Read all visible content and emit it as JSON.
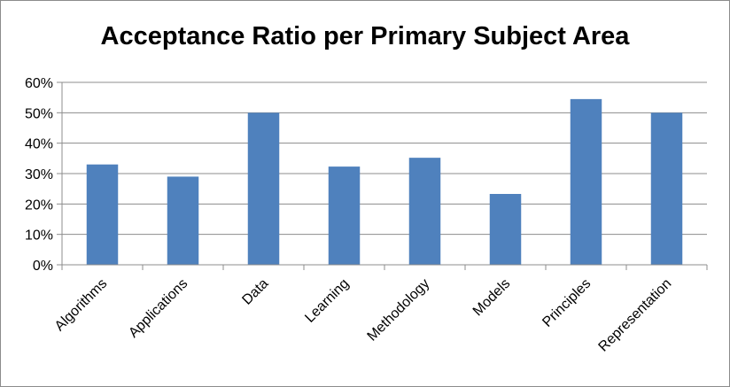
{
  "chart_data": {
    "type": "bar",
    "title": "Acceptance Ratio per Primary Subject Area",
    "xlabel": "",
    "ylabel": "",
    "categories": [
      "Algorithms",
      "Applications",
      "Data",
      "Learning",
      "Methodology",
      "Models",
      "Principles",
      "Representation"
    ],
    "values": [
      33,
      29,
      50,
      32.3,
      35.2,
      23.3,
      54.5,
      50
    ],
    "ylim": [
      0,
      60
    ],
    "yticks": [
      "0%",
      "10%",
      "20%",
      "30%",
      "40%",
      "50%",
      "60%"
    ],
    "grid": true,
    "legend": "none",
    "colors": {
      "bar": "#4f81bd",
      "grid": "#8c8c8c",
      "axis": "#8c8c8c"
    }
  }
}
